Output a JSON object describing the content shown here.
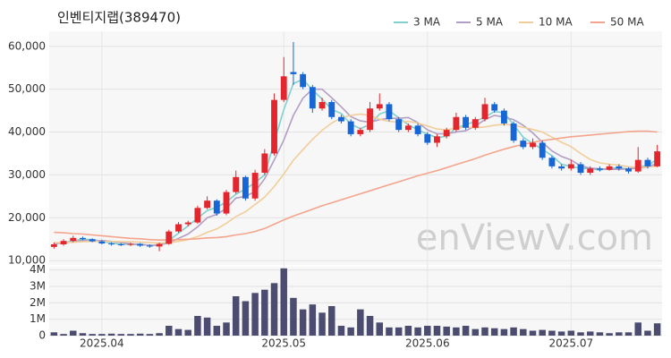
{
  "chart_data": {
    "type": "candlestick",
    "title": "인벤티지랩(389470)",
    "watermark": "enViewV.com",
    "categories": [
      null,
      null,
      null,
      null,
      null,
      "2025.04",
      null,
      null,
      null,
      null,
      null,
      null,
      null,
      null,
      null,
      null,
      null,
      null,
      null,
      null,
      null,
      null,
      null,
      null,
      "2025.05",
      null,
      null,
      null,
      null,
      null,
      null,
      null,
      null,
      null,
      null,
      null,
      null,
      null,
      null,
      "2025.06",
      null,
      null,
      null,
      null,
      null,
      null,
      null,
      null,
      null,
      null,
      null,
      null,
      null,
      null,
      "2025.07",
      null,
      null,
      null,
      null,
      null,
      null,
      null,
      null,
      null
    ],
    "open": [
      13200,
      13800,
      14600,
      15300,
      15000,
      14500,
      14000,
      13800,
      13700,
      13900,
      13500,
      13300,
      13900,
      16800,
      18500,
      18900,
      22300,
      24000,
      21000,
      26000,
      29500,
      24500,
      30500,
      35000,
      47500,
      54000,
      53500,
      50500,
      45500,
      47000,
      43500,
      42500,
      39500,
      40500,
      45500,
      46500,
      43000,
      40500,
      41500,
      39500,
      37500,
      39000,
      40500,
      43500,
      41000,
      43000,
      46500,
      45000,
      42000,
      38000,
      36500,
      37500,
      34000,
      32000,
      31500,
      32500,
      30500,
      31500,
      31200,
      32000,
      31500,
      30800,
      33500,
      32000
    ],
    "high": [
      14200,
      15000,
      15800,
      15600,
      15200,
      14800,
      14300,
      14100,
      14200,
      14100,
      13800,
      14200,
      17200,
      19000,
      19300,
      22800,
      25000,
      24300,
      26500,
      31000,
      29800,
      31200,
      36000,
      49000,
      57500,
      61000,
      54000,
      51000,
      48000,
      47500,
      44000,
      43000,
      41000,
      47000,
      49000,
      47000,
      43500,
      42000,
      42000,
      40000,
      39500,
      41000,
      44500,
      44000,
      43500,
      48000,
      47000,
      45500,
      42500,
      38500,
      38500,
      38000,
      34500,
      32500,
      33500,
      33000,
      32000,
      32000,
      32500,
      32500,
      31800,
      36500,
      34000,
      37000
    ],
    "low": [
      12800,
      13500,
      14300,
      14800,
      14300,
      13800,
      13500,
      13400,
      13400,
      13200,
      13000,
      12200,
      13700,
      16500,
      18000,
      18600,
      22000,
      20500,
      20600,
      25600,
      24000,
      24000,
      30000,
      34500,
      47000,
      51000,
      50000,
      44500,
      45000,
      43000,
      42000,
      39000,
      39000,
      40000,
      45000,
      42500,
      40000,
      40000,
      39000,
      37000,
      36500,
      38500,
      40000,
      40500,
      40500,
      42500,
      44500,
      41500,
      37500,
      36000,
      36000,
      33500,
      31500,
      31000,
      31000,
      30000,
      30000,
      30800,
      31000,
      31000,
      30300,
      30500,
      31500,
      31800
    ],
    "close": [
      13800,
      14600,
      15300,
      15000,
      14500,
      14000,
      13800,
      13700,
      13900,
      13500,
      13300,
      13900,
      16800,
      18500,
      18900,
      22300,
      24000,
      21000,
      26000,
      29500,
      24500,
      30500,
      35000,
      47500,
      53000,
      53500,
      50500,
      45500,
      47000,
      43500,
      42500,
      39500,
      40500,
      45500,
      46500,
      43000,
      40500,
      41500,
      39500,
      37500,
      39000,
      40500,
      43500,
      41000,
      43000,
      46500,
      45000,
      42000,
      38000,
      36500,
      37500,
      34000,
      32000,
      31500,
      32500,
      30500,
      31500,
      31200,
      32000,
      31500,
      30800,
      33500,
      32000,
      35500
    ],
    "up_color": "#e3262d",
    "down_color": "#1766d6",
    "series": [
      {
        "name": "3 MA",
        "color": "#7fd0cf",
        "values": [
          13900,
          14200,
          14600,
          15000,
          14900,
          14500,
          14100,
          13800,
          13800,
          13700,
          13600,
          13600,
          14700,
          16400,
          18100,
          19900,
          21700,
          22400,
          23700,
          25500,
          26700,
          28200,
          30000,
          37700,
          45200,
          51300,
          52300,
          49800,
          47700,
          45300,
          44300,
          41800,
          40800,
          41800,
          44200,
          45000,
          43300,
          41700,
          40500,
          39500,
          38700,
          39000,
          41000,
          41700,
          42500,
          43500,
          44800,
          44500,
          41700,
          38800,
          37300,
          36000,
          34500,
          32500,
          32000,
          31500,
          31500,
          31100,
          31600,
          31600,
          31400,
          31900,
          32100,
          33700
        ]
      },
      {
        "name": "5 MA",
        "color": "#b29ec4",
        "values": [
          14000,
          14100,
          14400,
          14700,
          14600,
          14700,
          14500,
          14200,
          13900,
          13800,
          13600,
          13600,
          14200,
          15200,
          16200,
          17900,
          20000,
          20800,
          22200,
          24600,
          25000,
          26100,
          29100,
          33500,
          38100,
          43900,
          47900,
          50000,
          50000,
          48000,
          45900,
          43600,
          42600,
          42300,
          42900,
          43200,
          43200,
          43400,
          42200,
          40500,
          39600,
          39600,
          40000,
          40300,
          41400,
          42900,
          43900,
          43500,
          42900,
          41600,
          39800,
          37600,
          35600,
          34300,
          33500,
          32100,
          31600,
          31400,
          31300,
          31300,
          31400,
          31600,
          31800,
          32700
        ]
      },
      {
        "name": "10 MA",
        "color": "#f2cd9a",
        "values": [
          14200,
          14200,
          14300,
          14400,
          14500,
          14500,
          14500,
          14400,
          14400,
          14300,
          14200,
          14100,
          14200,
          14500,
          14900,
          15600,
          16600,
          17400,
          18700,
          20300,
          21400,
          23100,
          24800,
          27300,
          30200,
          33400,
          35900,
          38300,
          40400,
          42100,
          43300,
          43900,
          44200,
          43900,
          43000,
          42500,
          42300,
          42500,
          42100,
          41400,
          40700,
          40500,
          40900,
          41200,
          41000,
          41200,
          41600,
          41800,
          41600,
          41100,
          40600,
          40000,
          38800,
          37600,
          36600,
          35000,
          33600,
          32800,
          32500,
          32300,
          31900,
          31800,
          31800,
          32100
        ]
      },
      {
        "name": "50 MA",
        "color": "#f4a48c",
        "values": [
          16600,
          16500,
          16300,
          16200,
          16000,
          15800,
          15600,
          15400,
          15200,
          15100,
          14900,
          14800,
          14800,
          14900,
          15000,
          15100,
          15300,
          15400,
          15600,
          16000,
          16300,
          16800,
          17500,
          18500,
          19500,
          20400,
          21200,
          22000,
          22800,
          23500,
          24200,
          24900,
          25600,
          26300,
          27000,
          27700,
          28400,
          29100,
          29800,
          30400,
          31000,
          31700,
          32400,
          33100,
          33800,
          34600,
          35300,
          36000,
          36600,
          37100,
          37600,
          38000,
          38300,
          38600,
          38900,
          39100,
          39300,
          39500,
          39700,
          39900,
          40100,
          40200,
          40200,
          40000
        ]
      }
    ],
    "ylim": [
      9000,
      63500
    ],
    "yticks": [
      {
        "value": 10000,
        "label": "10,000"
      },
      {
        "value": 20000,
        "label": "20,000"
      },
      {
        "value": 30000,
        "label": "30,000"
      },
      {
        "value": 40000,
        "label": "40,000"
      },
      {
        "value": 50000,
        "label": "50,000"
      },
      {
        "value": 60000,
        "label": "60,000"
      }
    ],
    "grid": true,
    "legend": "top-right",
    "volume": {
      "color": "#4b4c70",
      "values": [
        200000,
        100000,
        300000,
        150000,
        100000,
        100000,
        120000,
        100000,
        100000,
        120000,
        100000,
        150000,
        600000,
        400000,
        350000,
        1200000,
        1100000,
        600000,
        800000,
        2400000,
        2100000,
        2600000,
        2800000,
        3200000,
        4100000,
        2300000,
        1600000,
        1900000,
        1400000,
        1800000,
        600000,
        500000,
        1600000,
        1200000,
        800000,
        500000,
        500000,
        600000,
        500000,
        600000,
        600000,
        550000,
        500000,
        600000,
        400000,
        500000,
        450000,
        400000,
        500000,
        400000,
        300000,
        350000,
        300000,
        250000,
        300000,
        200000,
        250000,
        200000,
        150000,
        200000,
        200000,
        800000,
        300000,
        750000
      ],
      "ylim": [
        0,
        4200000
      ],
      "yticks": [
        0,
        {
          "value": 1000000,
          "label": "1M"
        },
        {
          "value": 2000000,
          "label": "2M"
        },
        {
          "value": 3000000,
          "label": "3M"
        },
        {
          "value": 4000000,
          "label": "4M"
        }
      ]
    }
  }
}
